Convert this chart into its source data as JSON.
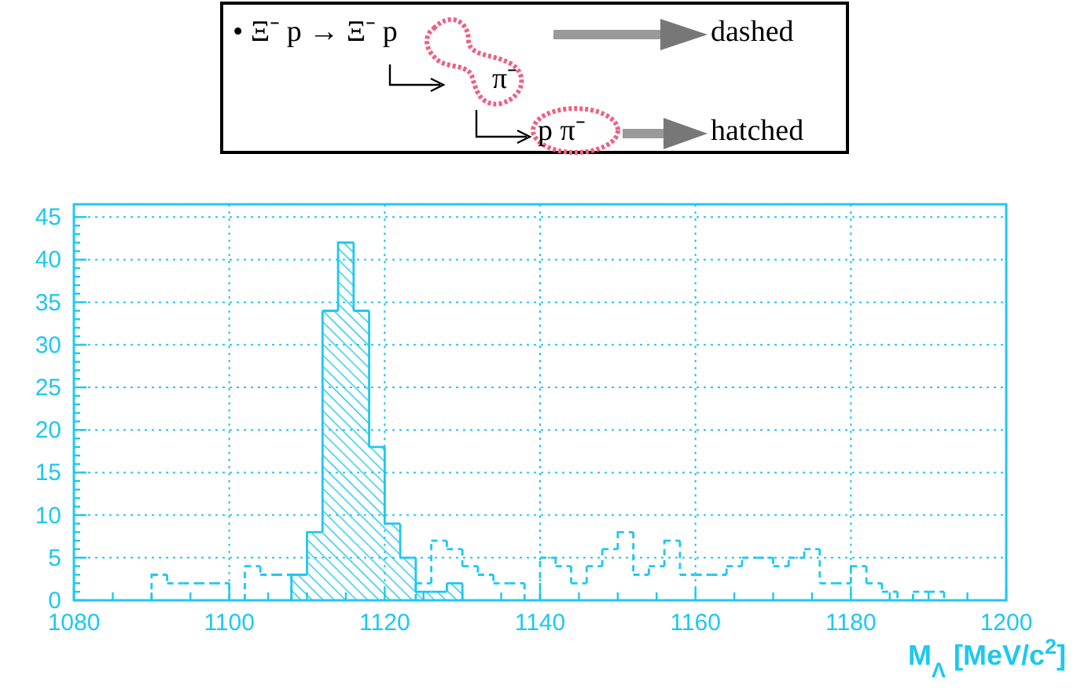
{
  "chart_data": {
    "type": "histogram",
    "xlabel": "M$_{Λ}$ [MeV/c$^{2}$]",
    "annotations": [
      "• Ξ⁻ p → Ξ⁻ p",
      "π⁻",
      "dashed",
      "p π⁻",
      "hatched"
    ],
    "bins": [
      1080,
      1082,
      1084,
      1086,
      1088,
      1090,
      1092,
      1094,
      1096,
      1098,
      1100,
      1102,
      1104,
      1106,
      1108,
      1110,
      1112,
      1114,
      1116,
      1118,
      1120,
      1122,
      1124,
      1126,
      1128,
      1130,
      1132,
      1134,
      1136,
      1138,
      1140,
      1142,
      1144,
      1146,
      1148,
      1150,
      1152,
      1154,
      1156,
      1158,
      1160,
      1162,
      1164,
      1166,
      1168,
      1170,
      1172,
      1174,
      1176,
      1178,
      1180,
      1182,
      1184,
      1186,
      1188,
      1190,
      1192,
      1194,
      1196,
      1198,
      1200
    ],
    "series": [
      {
        "color": "#1ec8f0",
        "line_style": "dashed",
        "values": [
          0,
          0,
          0,
          0,
          0,
          3,
          2,
          2,
          2,
          2,
          0,
          4,
          3,
          3,
          null,
          null,
          null,
          null,
          null,
          null,
          null,
          null,
          2,
          7,
          6,
          4,
          3,
          2,
          2,
          0,
          5,
          4,
          2,
          4,
          6,
          8,
          3,
          4,
          7,
          3,
          3,
          3,
          4,
          5,
          5,
          4,
          5,
          6,
          2,
          2,
          4,
          2,
          1,
          0,
          1,
          1,
          0,
          0,
          0,
          0
        ]
      },
      {
        "color": "#1ec8f0",
        "line_style": "solid",
        "values": [
          0,
          0,
          0,
          0,
          0,
          0,
          0,
          0,
          0,
          0,
          0,
          0,
          0,
          0,
          3,
          8,
          34,
          42,
          34,
          18,
          9,
          5,
          1,
          1,
          2,
          0,
          0,
          0,
          0,
          0,
          0,
          0,
          0,
          0,
          0,
          0,
          0,
          0,
          0,
          0,
          0,
          0,
          0,
          0,
          0,
          0,
          0,
          0,
          0,
          0,
          0,
          0,
          0,
          0,
          0,
          0,
          0,
          0,
          0,
          0
        ]
      }
    ],
    "xlim": [
      1080,
      1200
    ],
    "xticks": [
      1080,
      {
        "value": 1085,
        "label": null
      },
      {
        "value": 1090,
        "label": null
      },
      {
        "value": 1095,
        "label": null
      },
      1100,
      {
        "value": 1105,
        "label": null
      },
      {
        "value": 1110,
        "label": null
      },
      {
        "value": 1115,
        "label": null
      },
      1120,
      {
        "value": 1125,
        "label": null
      },
      {
        "value": 1130,
        "label": null
      },
      {
        "value": 1135,
        "label": null
      },
      1140,
      {
        "value": 1145,
        "label": null
      },
      {
        "value": 1150,
        "label": null
      },
      {
        "value": 1155,
        "label": null
      },
      1160,
      {
        "value": 1165,
        "label": null
      },
      {
        "value": 1170,
        "label": null
      },
      {
        "value": 1175,
        "label": null
      },
      1180,
      {
        "value": 1185,
        "label": null
      },
      {
        "value": 1190,
        "label": null
      },
      {
        "value": 1195,
        "label": null
      },
      1200
    ],
    "ylim": [
      0,
      46.5
    ],
    "yticks": [
      0,
      {
        "value": 1,
        "label": null
      },
      {
        "value": 2,
        "label": null
      },
      {
        "value": 3,
        "label": null
      },
      {
        "value": 4,
        "label": null
      },
      5,
      {
        "value": 6,
        "label": null
      },
      {
        "value": 7,
        "label": null
      },
      {
        "value": 8,
        "label": null
      },
      {
        "value": 9,
        "label": null
      },
      10,
      {
        "value": 11,
        "label": null
      },
      {
        "value": 12,
        "label": null
      },
      {
        "value": 13,
        "label": null
      },
      {
        "value": 14,
        "label": null
      },
      15,
      {
        "value": 16,
        "label": null
      },
      {
        "value": 17,
        "label": null
      },
      {
        "value": 18,
        "label": null
      },
      {
        "value": 19,
        "label": null
      },
      20,
      {
        "value": 21,
        "label": null
      },
      {
        "value": 22,
        "label": null
      },
      {
        "value": 23,
        "label": null
      },
      {
        "value": 24,
        "label": null
      },
      25,
      {
        "value": 26,
        "label": null
      },
      {
        "value": 27,
        "label": null
      },
      {
        "value": 28,
        "label": null
      },
      {
        "value": 29,
        "label": null
      },
      30,
      {
        "value": 31,
        "label": null
      },
      {
        "value": 32,
        "label": null
      },
      {
        "value": 33,
        "label": null
      },
      {
        "value": 34,
        "label": null
      },
      35,
      {
        "value": 36,
        "label": null
      },
      {
        "value": 37,
        "label": null
      },
      {
        "value": 38,
        "label": null
      },
      {
        "value": 39,
        "label": null
      },
      40,
      {
        "value": 41,
        "label": null
      },
      {
        "value": 42,
        "label": null
      },
      {
        "value": 43,
        "label": null
      },
      {
        "value": 44,
        "label": null
      },
      45
    ],
    "grid": true
  }
}
